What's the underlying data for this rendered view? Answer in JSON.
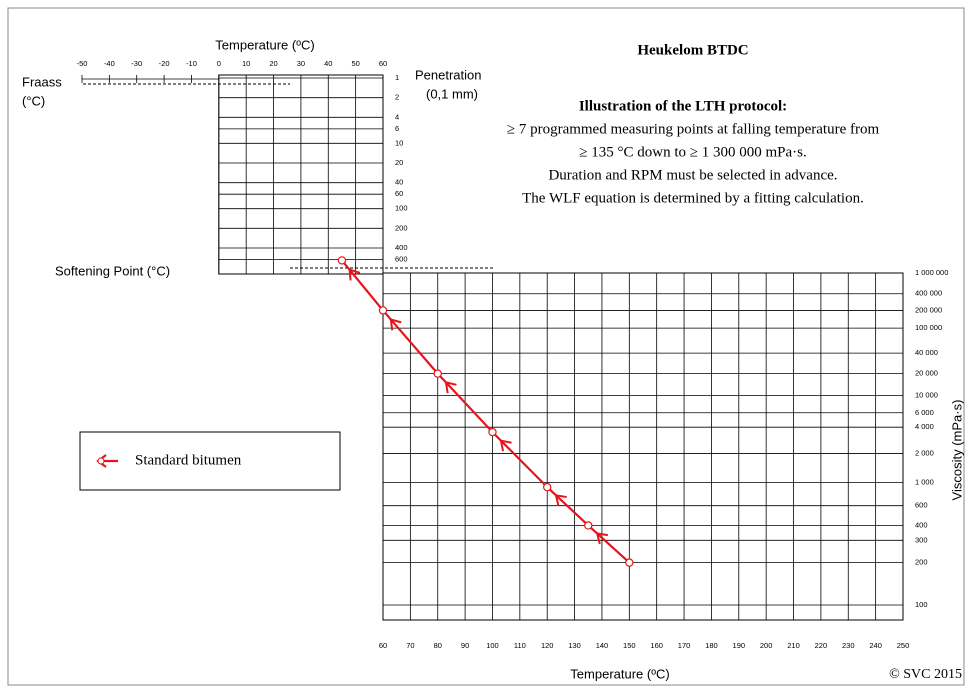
{
  "chart_data": {
    "type": "line",
    "title": "Heukelom BTDC",
    "subtitle": "Illustration of the LTH protocol:",
    "notes": [
      "≥ 7 programmed measuring points at falling temperature from",
      "≥ 135 °C down to ≥ 1 300 000 mPa·s.",
      "Duration and RPM must be selected in advance.",
      "The WLF equation is determined by a fitting calculation."
    ],
    "x_label": "Temperature (ºC)",
    "xlim": [
      60,
      250
    ],
    "xticks": [
      60,
      70,
      80,
      90,
      100,
      110,
      120,
      130,
      140,
      150,
      160,
      170,
      180,
      190,
      200,
      210,
      220,
      230,
      240,
      250
    ],
    "top_x_label": "Temperature (ºC)",
    "top_xlim": [
      -50,
      60
    ],
    "top_xticks": [
      -50,
      -40,
      -30,
      -20,
      -10,
      0,
      10,
      20,
      30,
      40,
      50,
      60
    ],
    "fraass_label": [
      "Fraass",
      "(°C)"
    ],
    "penetration_label": [
      "Penetration",
      "(0,1 mm)"
    ],
    "penetration_ylim": [
      1,
      1000
    ],
    "penetration_yticks": [
      1,
      2,
      4,
      6,
      10,
      20,
      40,
      60,
      100,
      200,
      400,
      600
    ],
    "softening_point_label": "Softening Point (°C)",
    "y_label": "Viscosity (mPa·s)",
    "yscale": "loglog",
    "ylim": [
      80,
      1000000
    ],
    "yticks": [
      {
        "value": 1000000,
        "label": "1 000 000"
      },
      {
        "value": 400000,
        "label": "400 000"
      },
      {
        "value": 200000,
        "label": "200 000"
      },
      {
        "value": 100000,
        "label": "100 000"
      },
      {
        "value": 40000,
        "label": "40 000"
      },
      {
        "value": 20000,
        "label": "20 000"
      },
      {
        "value": 10000,
        "label": "10 000"
      },
      {
        "value": 6000,
        "label": "6 000"
      },
      {
        "value": 4000,
        "label": "4 000"
      },
      {
        "value": 2000,
        "label": "2 000"
      },
      {
        "value": 1000,
        "label": "1 000"
      },
      600,
      400,
      300,
      200,
      100
    ],
    "grid": true,
    "legend": "left",
    "series": [
      {
        "name": "Standard bitumen",
        "color": "#e8141c",
        "x": [
          45,
          60,
          80,
          100,
          120,
          135,
          150
        ],
        "values": [
          1800000,
          200000,
          20000,
          3500,
          900,
          400,
          200
        ]
      }
    ],
    "copyright": "© SVC 2015"
  }
}
